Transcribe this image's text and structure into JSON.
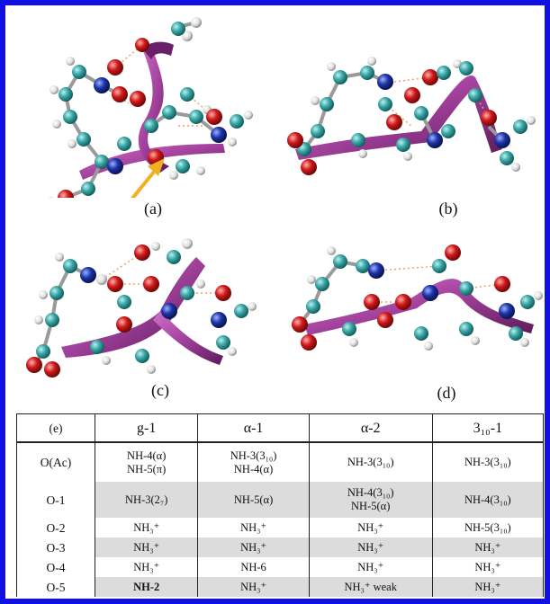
{
  "panels": [
    {
      "label": "(a)"
    },
    {
      "label": "(b)"
    },
    {
      "label": "(c)"
    },
    {
      "label": "(d)"
    }
  ],
  "table": {
    "corner": "(e)",
    "columns": [
      "g-1",
      "α-1",
      "α-2",
      "3₁₀-1"
    ],
    "rows": [
      {
        "key": "O(Ac)",
        "cells": [
          [
            "NH-4(α)",
            "NH-5(π)"
          ],
          [
            "NH-3(3₁₀)",
            "NH-4(α)"
          ],
          [
            "NH-3(3₁₀)"
          ],
          [
            "NH-3(3₁₀)"
          ]
        ]
      },
      {
        "key": "O-1",
        "cells": [
          [
            "NH-3(2₇)"
          ],
          [
            "NH-5(α)"
          ],
          [
            "NH-4(3₁₀)",
            "NH-5(α)"
          ],
          [
            "NH-4(3₁₀)"
          ]
        ]
      },
      {
        "key": "O-2",
        "cells": [
          [
            "NH₃⁺"
          ],
          [
            "NH₃⁺"
          ],
          [
            "NH₃⁺"
          ],
          [
            "NH-5(3₁₀)"
          ]
        ]
      },
      {
        "key": "O-3",
        "cells": [
          [
            "NH₃⁺"
          ],
          [
            "NH₃⁺"
          ],
          [
            "NH₃⁺"
          ],
          [
            "NH₃⁺"
          ]
        ]
      },
      {
        "key": "O-4",
        "cells": [
          [
            "NH₃⁺"
          ],
          [
            "NH-6"
          ],
          [
            "NH₃⁺"
          ],
          [
            "NH₃⁺"
          ]
        ]
      },
      {
        "key": "O-5",
        "cells": [
          [
            "NH-2"
          ],
          [
            "NH₃⁺"
          ],
          [
            "NH₃⁺ weak"
          ],
          [
            "NH₃⁺"
          ]
        ]
      }
    ]
  },
  "colors": {
    "frame": "#1010e0",
    "ribbon": "#a0409a",
    "carbon": "#3aa6a6",
    "oxygen": "#d01818",
    "nitrogen": "#1c34a8",
    "hydrogen": "#e8e8e8",
    "hbond": "#f0a060",
    "arrow": "#f0b020"
  }
}
